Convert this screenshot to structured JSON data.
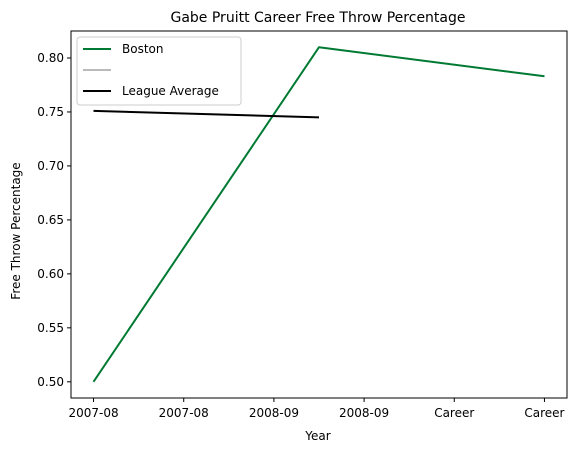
{
  "chart_data": {
    "type": "line",
    "title": "Gabe Pruitt Career Free Throw Percentage",
    "xlabel": "Year",
    "ylabel": "Free Throw Percentage",
    "x_tick_labels": [
      "2007-08",
      "2007-08",
      "2008-09",
      "2008-09",
      "Career",
      "Career"
    ],
    "ylim": [
      0.485,
      0.825
    ],
    "y_ticks": [
      0.5,
      0.55,
      0.6,
      0.65,
      0.7,
      0.75,
      0.8
    ],
    "y_tick_labels": [
      "0.50",
      "0.55",
      "0.60",
      "0.65",
      "0.70",
      "0.75",
      "0.80"
    ],
    "grid": false,
    "legend_position": "top-left",
    "series": [
      {
        "name": "Boston",
        "color": "#007A33",
        "x": [
          0,
          2.5,
          5
        ],
        "values": [
          0.5,
          0.81,
          0.783
        ]
      },
      {
        "name": "",
        "color": "#BABABA",
        "x": [],
        "values": []
      },
      {
        "name": "League Average",
        "color": "#000000",
        "x": [
          0,
          2.5
        ],
        "values": [
          0.751,
          0.745
        ]
      }
    ]
  }
}
